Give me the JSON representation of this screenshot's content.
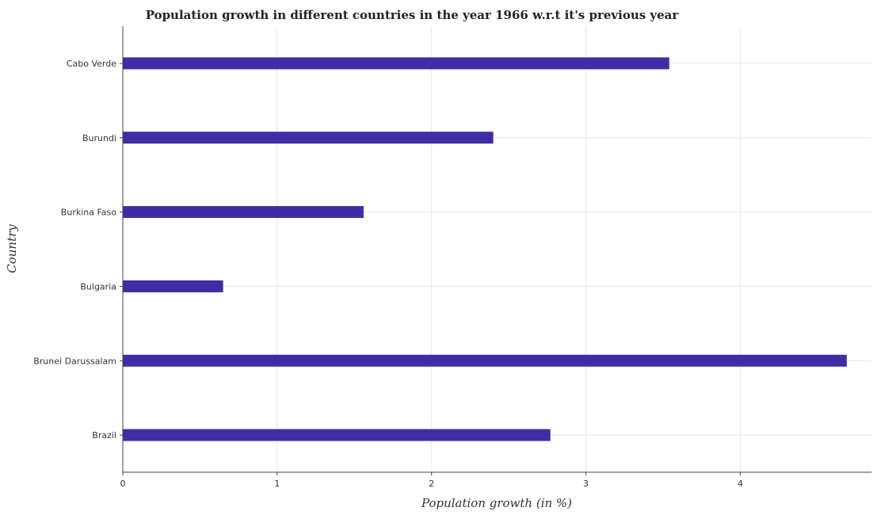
{
  "chart_data": {
    "type": "bar",
    "orientation": "horizontal",
    "title": "Population growth in different countries in the year 1966 w.r.t it's previous year",
    "xlabel": "Population growth (in %)",
    "ylabel": "Country",
    "categories": [
      "Brazil",
      "Brunei Darussalam",
      "Bulgaria",
      "Burkina Faso",
      "Burundi",
      "Cabo Verde"
    ],
    "values": [
      2.77,
      4.69,
      0.65,
      1.56,
      2.4,
      3.54
    ],
    "xlim": [
      0,
      4.85
    ],
    "xticks": [
      0,
      1,
      2,
      3,
      4
    ],
    "xtick_labels": [
      "0",
      "1",
      "2",
      "3",
      "4"
    ],
    "bar_color": "#3e2da6",
    "grid": true
  }
}
